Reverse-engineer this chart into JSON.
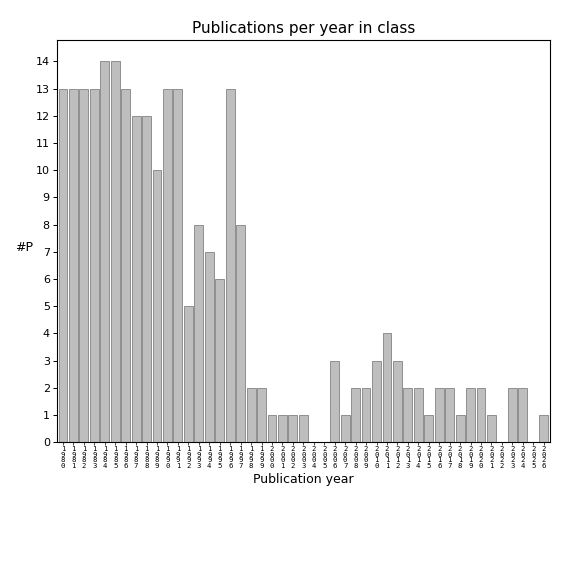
{
  "title": "Publications per year in class",
  "xlabel": "Publication year",
  "ylabel": "#P",
  "bar_color": "#bebebe",
  "edge_color": "#555555",
  "background_color": "#ffffff",
  "years": [
    1980,
    1981,
    1982,
    1983,
    1984,
    1985,
    1986,
    1987,
    1988,
    1989,
    1990,
    1991,
    1992,
    1993,
    1994,
    1995,
    1996,
    1997,
    1998,
    1999,
    2000,
    2001,
    2002,
    2003,
    2004,
    2005,
    2006,
    2007,
    2008,
    2009,
    2010,
    2011,
    2012,
    2013,
    2014,
    2015,
    2016,
    2017,
    2018,
    2019,
    2020,
    2021,
    2022,
    2023,
    2024,
    2025,
    2026
  ],
  "values": [
    13,
    13,
    13,
    13,
    14,
    14,
    13,
    12,
    12,
    10,
    13,
    13,
    5,
    8,
    7,
    6,
    13,
    8,
    2,
    2,
    1,
    1,
    1,
    1,
    0,
    0,
    3,
    1,
    2,
    2,
    3,
    4,
    3,
    2,
    2,
    1,
    2,
    2,
    1,
    2,
    2,
    1,
    0,
    2,
    2,
    0,
    1
  ],
  "yticks": [
    0,
    1,
    2,
    3,
    4,
    5,
    6,
    7,
    8,
    9,
    10,
    11,
    12,
    13,
    14
  ],
  "ylim": [
    0,
    14.8
  ],
  "figsize": [
    5.67,
    5.67
  ],
  "dpi": 100,
  "title_fontsize": 11,
  "axis_label_fontsize": 9,
  "tick_label_fontsize": 8,
  "xtick_fontsize": 5.2
}
